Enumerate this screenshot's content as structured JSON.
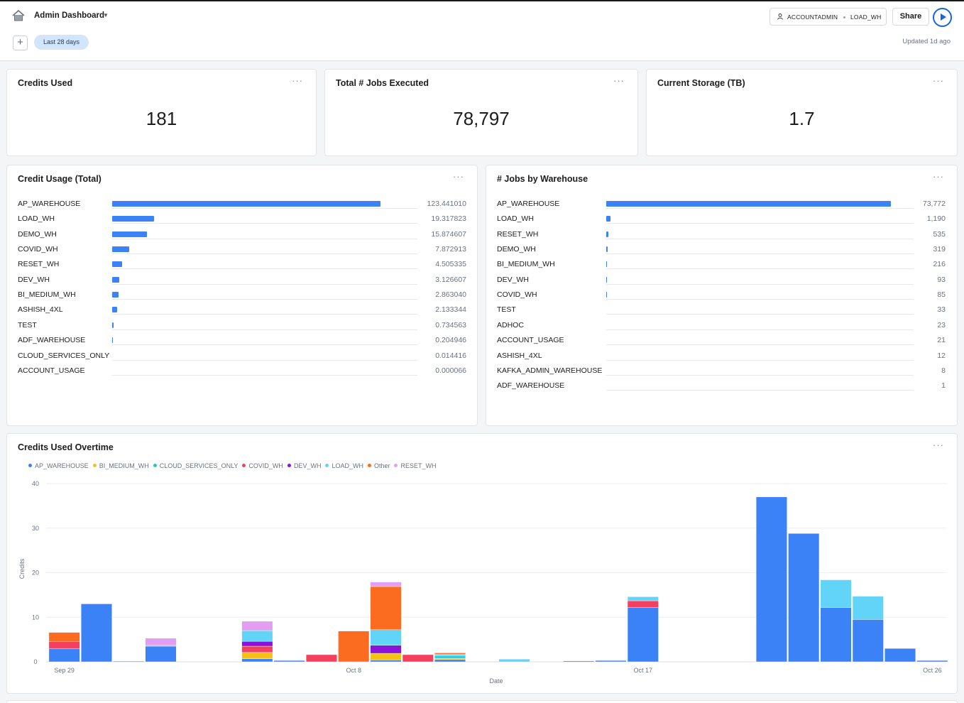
{
  "header": {
    "title": "Admin Dashboard",
    "role": "ACCOUNTADMIN",
    "warehouse": "LOAD_WH",
    "share_label": "Share",
    "filter": "Last 28 days",
    "updated": "Updated 1d ago",
    "add_label": "+"
  },
  "kpis": [
    {
      "title": "Credits Used",
      "value": "181"
    },
    {
      "title": "Total # Jobs Executed",
      "value": "78,797"
    },
    {
      "title": "Current Storage (TB)",
      "value": "1.7"
    }
  ],
  "credit_usage": {
    "title": "Credit Usage (Total)",
    "max": 123.44101,
    "rows": [
      {
        "label": "AP_WAREHOUSE",
        "value": "123.441010",
        "num": 123.44101
      },
      {
        "label": "LOAD_WH",
        "value": "19.317823",
        "num": 19.317823
      },
      {
        "label": "DEMO_WH",
        "value": "15.874607",
        "num": 15.874607
      },
      {
        "label": "COVID_WH",
        "value": "7.872913",
        "num": 7.872913
      },
      {
        "label": "RESET_WH",
        "value": "4.505335",
        "num": 4.505335
      },
      {
        "label": "DEV_WH",
        "value": "3.126607",
        "num": 3.126607
      },
      {
        "label": "BI_MEDIUM_WH",
        "value": "2.863040",
        "num": 2.86304
      },
      {
        "label": "ASHISH_4XL",
        "value": "2.133344",
        "num": 2.133344
      },
      {
        "label": "TEST",
        "value": "0.734563",
        "num": 0.734563
      },
      {
        "label": "ADF_WAREHOUSE",
        "value": "0.204946",
        "num": 0.204946
      },
      {
        "label": "CLOUD_SERVICES_ONLY",
        "value": "0.014416",
        "num": 0.014416
      },
      {
        "label": "ACCOUNT_USAGE",
        "value": "0.000066",
        "num": 6.6e-05
      }
    ]
  },
  "jobs_by_warehouse": {
    "title": "# Jobs by Warehouse",
    "max": 73772,
    "rows": [
      {
        "label": "AP_WAREHOUSE",
        "value": "73,772",
        "num": 73772
      },
      {
        "label": "LOAD_WH",
        "value": "1,190",
        "num": 1190
      },
      {
        "label": "RESET_WH",
        "value": "535",
        "num": 535
      },
      {
        "label": "DEMO_WH",
        "value": "319",
        "num": 319
      },
      {
        "label": "BI_MEDIUM_WH",
        "value": "216",
        "num": 216
      },
      {
        "label": "DEV_WH",
        "value": "93",
        "num": 93
      },
      {
        "label": "COVID_WH",
        "value": "85",
        "num": 85
      },
      {
        "label": "TEST",
        "value": "33",
        "num": 33
      },
      {
        "label": "ADHOC",
        "value": "23",
        "num": 23
      },
      {
        "label": "ACCOUNT_USAGE",
        "value": "21",
        "num": 21
      },
      {
        "label": "ASHISH_4XL",
        "value": "12",
        "num": 12
      },
      {
        "label": "KAFKA_ADMIN_WAREHOUSE",
        "value": "8",
        "num": 8
      },
      {
        "label": "ADF_WAREHOUSE",
        "value": "1",
        "num": 1
      }
    ]
  },
  "chart_data": {
    "type": "bar",
    "stacked": true,
    "title": "Credits Used Overtime",
    "xlabel": "Date",
    "ylabel": "Credits",
    "ylim": [
      0,
      40
    ],
    "yticks": [
      0,
      10,
      20,
      30,
      40
    ],
    "xtick_labels": [
      {
        "label": "Sep 29",
        "index": 0
      },
      {
        "label": "Oct 8",
        "index": 9
      },
      {
        "label": "Oct 17",
        "index": 18
      },
      {
        "label": "Oct 26",
        "index": 27
      }
    ],
    "legend_position": "top-left",
    "categories": [
      "Sep 29",
      "Sep 30",
      "Oct 1",
      "Oct 2",
      "Oct 3",
      "Oct 4",
      "Oct 5",
      "Oct 6",
      "Oct 7",
      "Oct 8",
      "Oct 9",
      "Oct 10",
      "Oct 11",
      "Oct 12",
      "Oct 13",
      "Oct 14",
      "Oct 15",
      "Oct 16",
      "Oct 17",
      "Oct 18",
      "Oct 19",
      "Oct 20",
      "Oct 21",
      "Oct 22",
      "Oct 23",
      "Oct 24",
      "Oct 25",
      "Oct 26"
    ],
    "series": [
      {
        "name": "AP_WAREHOUSE",
        "color": "#3b82f6",
        "values": [
          3,
          13,
          0.1,
          3.5,
          0,
          0,
          0.7,
          0.3,
          0,
          0,
          0.4,
          0,
          0.5,
          0,
          0,
          0,
          0.2,
          0.3,
          12.2,
          0,
          0,
          0,
          37,
          28.8,
          12.2,
          9.5,
          3,
          0.3
        ]
      },
      {
        "name": "BI_MEDIUM_WH",
        "color": "#f5c211",
        "values": [
          0,
          0,
          0,
          0,
          0,
          0,
          1.4,
          0,
          0,
          0,
          1.5,
          0,
          0.3,
          0,
          0,
          0,
          0,
          0,
          0,
          0,
          0,
          0,
          0,
          0,
          0,
          0,
          0,
          0
        ]
      },
      {
        "name": "CLOUD_SERVICES_ONLY",
        "color": "#22c5d6",
        "values": [
          0,
          0,
          0,
          0,
          0,
          0,
          0,
          0,
          0,
          0,
          0,
          0,
          0.5,
          0,
          0,
          0,
          0,
          0,
          0,
          0,
          0,
          0,
          0,
          0,
          0,
          0,
          0,
          0
        ]
      },
      {
        "name": "COVID_WH",
        "color": "#f43f5e",
        "values": [
          1.5,
          0,
          0,
          0,
          0,
          0,
          1.4,
          0,
          1.6,
          0,
          0,
          1.6,
          0,
          0,
          0,
          0,
          0,
          0,
          1.5,
          0,
          0,
          0,
          0,
          0,
          0,
          0,
          0,
          0
        ]
      },
      {
        "name": "DEV_WH",
        "color": "#8b12d6",
        "values": [
          0,
          0,
          0,
          0,
          0,
          0,
          1.1,
          0,
          0,
          0,
          1.8,
          0,
          0,
          0,
          0,
          0,
          0,
          0,
          0,
          0,
          0,
          0,
          0,
          0,
          0,
          0,
          0,
          0
        ]
      },
      {
        "name": "LOAD_WH",
        "color": "#62d4f7",
        "values": [
          0,
          0,
          0,
          0.2,
          0,
          0,
          2.4,
          0,
          0,
          0,
          3.5,
          0,
          0.4,
          0,
          0.6,
          0,
          0,
          0,
          0.9,
          0,
          0,
          0,
          0,
          0,
          6.2,
          5.2,
          0,
          0
        ]
      },
      {
        "name": "Other",
        "color": "#fb6c21",
        "values": [
          2.1,
          0,
          0,
          0,
          0,
          0,
          0,
          0,
          0,
          6.9,
          9.7,
          0,
          0.3,
          0,
          0,
          0,
          0,
          0,
          0,
          0,
          0,
          0,
          0,
          0,
          0,
          0,
          0,
          0
        ]
      },
      {
        "name": "RESET_WH",
        "color": "#e29ef2",
        "values": [
          0,
          0,
          0,
          1.6,
          0,
          0,
          2.1,
          0,
          0,
          0,
          1,
          0,
          0,
          0,
          0,
          0,
          0,
          0,
          0,
          0,
          0,
          0,
          0,
          0,
          0,
          0,
          0,
          0
        ]
      }
    ]
  }
}
